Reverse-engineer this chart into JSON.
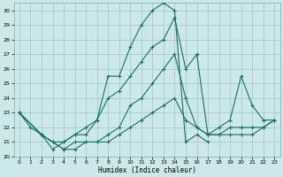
{
  "xlabel": "Humidex (Indice chaleur)",
  "bg_color": "#cce8e8",
  "grid_color": "#aacccc",
  "line_color": "#1a6e6e",
  "xlim": [
    -0.5,
    23.5
  ],
  "ylim": [
    20,
    30.5
  ],
  "xticks": [
    0,
    1,
    2,
    3,
    4,
    5,
    6,
    7,
    8,
    9,
    10,
    11,
    12,
    13,
    14,
    15,
    16,
    17,
    18,
    19,
    20,
    21,
    22,
    23
  ],
  "yticks": [
    20,
    21,
    22,
    23,
    24,
    25,
    26,
    27,
    28,
    29,
    30
  ],
  "lines": [
    {
      "x": [
        0,
        1,
        2,
        3,
        4,
        5,
        6,
        7,
        8,
        9,
        10,
        11,
        12,
        13,
        14,
        15,
        16,
        17
      ],
      "y": [
        23,
        22,
        21.5,
        20.5,
        21,
        21.5,
        21.5,
        22.5,
        25.5,
        25.5,
        27.5,
        29.0,
        30.0,
        30.5,
        30.0,
        21.0,
        21.5,
        21.0
      ]
    },
    {
      "x": [
        0,
        2,
        3,
        4,
        5,
        6,
        7,
        8,
        9,
        10,
        11,
        12,
        13,
        14,
        15,
        16,
        17,
        18,
        19,
        20,
        21,
        22,
        23
      ],
      "y": [
        23,
        21.5,
        21.0,
        21.0,
        21.5,
        22.0,
        22.5,
        24.0,
        24.5,
        25.5,
        26.5,
        27.5,
        28.0,
        29.5,
        26.0,
        27.0,
        21.5,
        22.0,
        22.5,
        25.5,
        23.5,
        22.5,
        22.5
      ]
    },
    {
      "x": [
        0,
        2,
        3,
        4,
        5,
        6,
        7,
        8,
        9,
        10,
        11,
        12,
        13,
        14,
        15,
        16,
        17,
        18,
        19,
        20,
        21,
        22,
        23
      ],
      "y": [
        23,
        21.5,
        21.0,
        20.5,
        21.0,
        21.0,
        21.0,
        21.5,
        22.0,
        23.5,
        24.0,
        25.0,
        26.0,
        27.0,
        24.0,
        22.0,
        21.5,
        21.5,
        22.0,
        22.0,
        22.0,
        22.0,
        22.5
      ]
    },
    {
      "x": [
        0,
        2,
        3,
        4,
        5,
        6,
        7,
        8,
        9,
        10,
        11,
        12,
        13,
        14,
        15,
        16,
        17,
        18,
        19,
        20,
        21,
        22,
        23
      ],
      "y": [
        23,
        21.5,
        21.0,
        20.5,
        20.5,
        21.0,
        21.0,
        21.0,
        21.5,
        22.0,
        22.5,
        23.0,
        23.5,
        24.0,
        22.5,
        22.0,
        21.5,
        21.5,
        21.5,
        21.5,
        21.5,
        22.0,
        22.5
      ]
    }
  ]
}
